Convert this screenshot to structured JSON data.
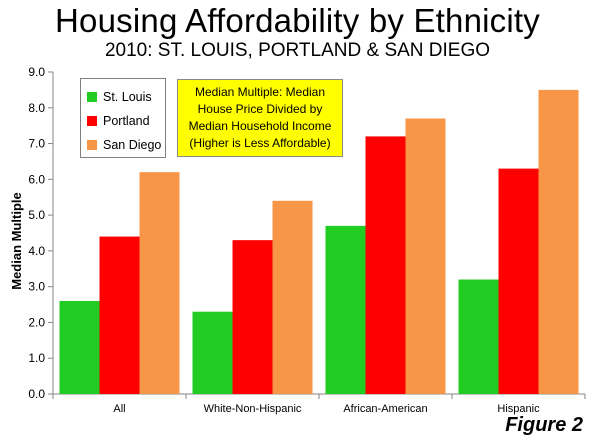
{
  "title": "Housing Affordability by Ethnicity",
  "subtitle": "2010: ST. LOUIS, PORTLAND & SAN DIEGO",
  "note_lines": [
    "Median Multiple: Median",
    "House Price Divided by",
    "Median Household Income",
    "(Higher is Less Affordable)"
  ],
  "figure_label": "Figure 2",
  "colors": {
    "St. Louis": "#22cc22",
    "Portland": "#ff0000",
    "San Diego": "#f79646"
  },
  "chart_data": {
    "type": "bar",
    "categories": [
      "All",
      "White-Non-Hispanic",
      "African-American",
      "Hispanic"
    ],
    "series": [
      {
        "name": "St. Louis",
        "values": [
          2.6,
          2.3,
          4.7,
          3.2
        ]
      },
      {
        "name": "Portland",
        "values": [
          4.4,
          4.3,
          7.2,
          6.3
        ]
      },
      {
        "name": "San Diego",
        "values": [
          6.2,
          5.4,
          7.7,
          8.5
        ]
      }
    ],
    "ylabel": "Median Multiple",
    "ylim": [
      0,
      9
    ],
    "yticks": [
      "0.0",
      "1.0",
      "2.0",
      "3.0",
      "4.0",
      "5.0",
      "6.0",
      "7.0",
      "8.0",
      "9.0"
    ],
    "grid": false,
    "legend": "top-left"
  }
}
